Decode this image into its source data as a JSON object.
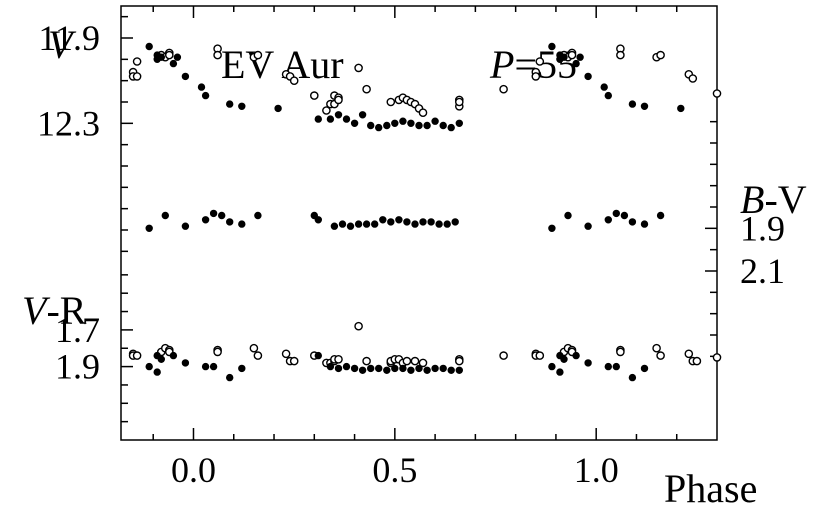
{
  "chart_data": {
    "type": "scatter",
    "title": "EV Aur",
    "period_label": {
      "italic": "P",
      "rest": "=55"
    },
    "xlabel": "Phase",
    "x_ticks": [
      {
        "value": 0.0,
        "label": "0.0"
      },
      {
        "value": 0.5,
        "label": "0.5"
      },
      {
        "value": 1.0,
        "label": "1.0"
      }
    ],
    "xlim": [
      -0.18,
      1.3
    ],
    "panels": {
      "V": {
        "name_italic": "V",
        "name_rest": "",
        "ylim": [
          11.75,
          12.95
        ],
        "inverted": true,
        "ticks": [
          {
            "value": 11.9,
            "label": "11.9"
          },
          {
            "value": 12.3,
            "label": "12.3"
          }
        ]
      },
      "BV": {
        "name_italic": "B",
        "name_rest": "-V",
        "ylim": [
          1.35,
          2.55
        ],
        "inverted": true,
        "ticks": [
          {
            "value": 1.9,
            "label": "1.9"
          },
          {
            "value": 2.1,
            "label": "2.1"
          }
        ]
      },
      "VR": {
        "name_italic": "V",
        "name_rest": "-R",
        "ylim": [
          1.33,
          2.3
        ],
        "inverted": true,
        "ticks": [
          {
            "value": 1.7,
            "label": "1.7"
          },
          {
            "value": 1.9,
            "label": "1.9"
          }
        ]
      }
    },
    "series": [
      {
        "panel": "V",
        "marker": "open-circle",
        "points": [
          [
            -0.15,
            12.06
          ],
          [
            -0.15,
            12.08
          ],
          [
            -0.14,
            12.08
          ],
          [
            -0.14,
            12.01
          ],
          [
            -0.08,
            11.98
          ],
          [
            -0.07,
            11.99
          ],
          [
            -0.06,
            11.97
          ],
          [
            -0.06,
            11.98
          ],
          [
            0.06,
            11.95
          ],
          [
            0.06,
            11.98
          ],
          [
            0.15,
            11.99
          ],
          [
            0.16,
            11.98
          ],
          [
            0.23,
            12.07
          ],
          [
            0.24,
            12.08
          ],
          [
            0.25,
            12.1
          ],
          [
            0.3,
            12.17
          ],
          [
            0.33,
            12.24
          ],
          [
            0.34,
            12.21
          ],
          [
            0.35,
            12.21
          ],
          [
            0.35,
            12.17
          ],
          [
            0.36,
            12.18
          ],
          [
            0.36,
            12.19
          ],
          [
            0.41,
            12.04
          ],
          [
            0.43,
            12.14
          ],
          [
            0.49,
            12.2
          ],
          [
            0.51,
            12.19
          ],
          [
            0.52,
            12.18
          ],
          [
            0.53,
            12.19
          ],
          [
            0.54,
            12.2
          ],
          [
            0.55,
            12.21
          ],
          [
            0.56,
            12.23
          ],
          [
            0.57,
            12.25
          ],
          [
            0.66,
            12.22
          ],
          [
            0.66,
            12.19
          ],
          [
            0.66,
            12.2
          ],
          [
            0.77,
            12.14
          ],
          [
            0.85,
            12.06
          ],
          [
            0.85,
            12.08
          ],
          [
            0.86,
            12.01
          ],
          [
            0.92,
            11.98
          ],
          [
            0.93,
            11.99
          ],
          [
            0.94,
            11.97
          ],
          [
            0.94,
            11.98
          ],
          [
            1.06,
            11.95
          ],
          [
            1.06,
            11.98
          ],
          [
            1.15,
            11.99
          ],
          [
            1.16,
            11.98
          ],
          [
            1.23,
            12.07
          ],
          [
            1.24,
            12.09
          ],
          [
            1.3,
            12.16
          ]
        ]
      },
      {
        "panel": "V",
        "marker": "filled-circle",
        "points": [
          [
            -0.11,
            11.94
          ],
          [
            -0.09,
            11.98
          ],
          [
            -0.09,
            12.0
          ],
          [
            -0.08,
            11.99
          ],
          [
            -0.05,
            12.02
          ],
          [
            -0.04,
            11.99
          ],
          [
            -0.02,
            12.08
          ],
          [
            0.02,
            12.13
          ],
          [
            0.03,
            12.17
          ],
          [
            0.09,
            12.21
          ],
          [
            0.12,
            12.22
          ],
          [
            0.21,
            12.23
          ],
          [
            0.31,
            12.28
          ],
          [
            0.34,
            12.28
          ],
          [
            0.36,
            12.26
          ],
          [
            0.38,
            12.28
          ],
          [
            0.4,
            12.3
          ],
          [
            0.42,
            12.26
          ],
          [
            0.44,
            12.31
          ],
          [
            0.46,
            12.32
          ],
          [
            0.48,
            12.31
          ],
          [
            0.5,
            12.3
          ],
          [
            0.52,
            12.29
          ],
          [
            0.54,
            12.3
          ],
          [
            0.56,
            12.31
          ],
          [
            0.58,
            12.31
          ],
          [
            0.6,
            12.29
          ],
          [
            0.62,
            12.31
          ],
          [
            0.64,
            12.32
          ],
          [
            0.66,
            12.3
          ],
          [
            0.89,
            11.94
          ],
          [
            0.91,
            11.98
          ],
          [
            0.91,
            12.0
          ],
          [
            0.92,
            11.99
          ],
          [
            0.95,
            12.02
          ],
          [
            0.96,
            11.99
          ],
          [
            0.98,
            12.08
          ],
          [
            1.02,
            12.13
          ],
          [
            1.03,
            12.17
          ],
          [
            1.09,
            12.21
          ],
          [
            1.12,
            12.22
          ],
          [
            1.21,
            12.23
          ]
        ]
      },
      {
        "panel": "BV",
        "marker": "filled-circle",
        "points": [
          [
            -0.11,
            1.9
          ],
          [
            -0.07,
            1.84
          ],
          [
            -0.02,
            1.89
          ],
          [
            0.03,
            1.86
          ],
          [
            0.05,
            1.83
          ],
          [
            0.07,
            1.84
          ],
          [
            0.09,
            1.87
          ],
          [
            0.12,
            1.88
          ],
          [
            0.16,
            1.84
          ],
          [
            0.3,
            1.84
          ],
          [
            0.31,
            1.86
          ],
          [
            0.35,
            1.89
          ],
          [
            0.37,
            1.88
          ],
          [
            0.39,
            1.89
          ],
          [
            0.41,
            1.88
          ],
          [
            0.43,
            1.88
          ],
          [
            0.45,
            1.88
          ],
          [
            0.47,
            1.86
          ],
          [
            0.49,
            1.87
          ],
          [
            0.51,
            1.86
          ],
          [
            0.53,
            1.87
          ],
          [
            0.55,
            1.88
          ],
          [
            0.57,
            1.87
          ],
          [
            0.59,
            1.87
          ],
          [
            0.61,
            1.88
          ],
          [
            0.63,
            1.88
          ],
          [
            0.65,
            1.87
          ],
          [
            0.89,
            1.9
          ],
          [
            0.93,
            1.84
          ],
          [
            0.98,
            1.89
          ],
          [
            1.03,
            1.86
          ],
          [
            1.05,
            1.83
          ],
          [
            1.07,
            1.84
          ],
          [
            1.09,
            1.87
          ],
          [
            1.12,
            1.88
          ],
          [
            1.16,
            1.84
          ]
        ]
      },
      {
        "panel": "VR",
        "marker": "open-circle",
        "points": [
          [
            -0.15,
            1.83
          ],
          [
            -0.15,
            1.84
          ],
          [
            -0.14,
            1.84
          ],
          [
            -0.08,
            1.82
          ],
          [
            -0.07,
            1.8
          ],
          [
            -0.06,
            1.81
          ],
          [
            -0.06,
            1.82
          ],
          [
            0.06,
            1.81
          ],
          [
            0.06,
            1.82
          ],
          [
            0.15,
            1.8
          ],
          [
            0.16,
            1.84
          ],
          [
            0.23,
            1.83
          ],
          [
            0.24,
            1.87
          ],
          [
            0.25,
            1.87
          ],
          [
            0.3,
            1.84
          ],
          [
            0.33,
            1.88
          ],
          [
            0.34,
            1.88
          ],
          [
            0.35,
            1.87
          ],
          [
            0.35,
            1.86
          ],
          [
            0.36,
            1.86
          ],
          [
            0.41,
            1.68
          ],
          [
            0.43,
            1.87
          ],
          [
            0.49,
            1.88
          ],
          [
            0.49,
            1.87
          ],
          [
            0.5,
            1.86
          ],
          [
            0.51,
            1.86
          ],
          [
            0.52,
            1.88
          ],
          [
            0.53,
            1.87
          ],
          [
            0.55,
            1.87
          ],
          [
            0.57,
            1.88
          ],
          [
            0.66,
            1.86
          ],
          [
            0.66,
            1.87
          ],
          [
            0.77,
            1.84
          ],
          [
            0.85,
            1.83
          ],
          [
            0.85,
            1.84
          ],
          [
            0.86,
            1.84
          ],
          [
            0.92,
            1.82
          ],
          [
            0.93,
            1.8
          ],
          [
            0.94,
            1.81
          ],
          [
            0.94,
            1.82
          ],
          [
            1.06,
            1.81
          ],
          [
            1.06,
            1.82
          ],
          [
            1.15,
            1.8
          ],
          [
            1.16,
            1.84
          ],
          [
            1.23,
            1.83
          ],
          [
            1.24,
            1.87
          ],
          [
            1.25,
            1.87
          ],
          [
            1.3,
            1.85
          ]
        ]
      },
      {
        "panel": "VR",
        "marker": "filled-circle",
        "points": [
          [
            -0.11,
            1.9
          ],
          [
            -0.09,
            1.93
          ],
          [
            -0.09,
            1.84
          ],
          [
            -0.08,
            1.86
          ],
          [
            -0.05,
            1.84
          ],
          [
            -0.02,
            1.88
          ],
          [
            0.03,
            1.9
          ],
          [
            0.05,
            1.9
          ],
          [
            0.09,
            1.96
          ],
          [
            0.12,
            1.91
          ],
          [
            0.31,
            1.84
          ],
          [
            0.34,
            1.9
          ],
          [
            0.36,
            1.91
          ],
          [
            0.38,
            1.9
          ],
          [
            0.4,
            1.91
          ],
          [
            0.42,
            1.92
          ],
          [
            0.44,
            1.91
          ],
          [
            0.46,
            1.91
          ],
          [
            0.48,
            1.92
          ],
          [
            0.5,
            1.91
          ],
          [
            0.52,
            1.91
          ],
          [
            0.54,
            1.92
          ],
          [
            0.56,
            1.91
          ],
          [
            0.58,
            1.92
          ],
          [
            0.6,
            1.91
          ],
          [
            0.62,
            1.91
          ],
          [
            0.64,
            1.92
          ],
          [
            0.66,
            1.92
          ],
          [
            0.89,
            1.9
          ],
          [
            0.91,
            1.93
          ],
          [
            0.91,
            1.84
          ],
          [
            0.92,
            1.86
          ],
          [
            0.95,
            1.84
          ],
          [
            0.98,
            1.88
          ],
          [
            1.03,
            1.9
          ],
          [
            1.05,
            1.9
          ],
          [
            1.09,
            1.96
          ],
          [
            1.12,
            1.91
          ]
        ]
      }
    ]
  }
}
